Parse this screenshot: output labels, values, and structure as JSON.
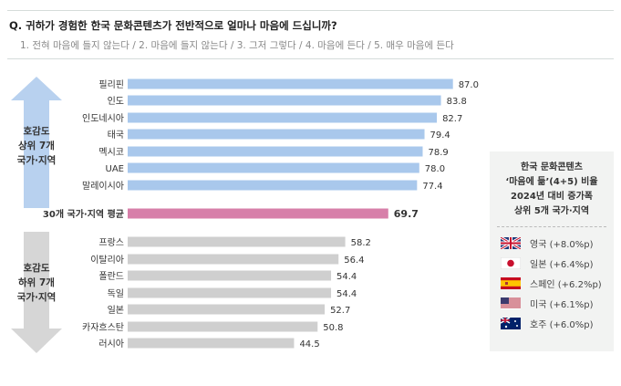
{
  "question": "Q. 귀하가 경험한 한국 문화콘텐츠가 전반적으로 얼마나 마음에 드십니까?",
  "scale": "1. 전혀 마음에 들지 않는다 / 2. 마음에 들지 않는다 / 3. 그저 그렇다 / 4. 마음에 든다 / 5. 매우 마음에 든다",
  "top_label": [
    "호감도",
    "상위 7개",
    "국가·지역"
  ],
  "bottom_label": [
    "호감도",
    "하위 7개",
    "국가·지역"
  ],
  "colors": {
    "top": "#a9c8ec",
    "average": "#d77fa9",
    "bottom": "#cfcfcf",
    "arrow_top": "#b8d1ef",
    "arrow_bottom": "#d6d6d6"
  },
  "chart_data": {
    "type": "bar",
    "orientation": "horizontal",
    "categories": [
      "필리핀",
      "인도",
      "인도네시아",
      "태국",
      "멕시코",
      "UAE",
      "말레이시아",
      "30개 국가·지역 평균",
      "프랑스",
      "이탈리아",
      "폴란드",
      "독일",
      "일본",
      "카자흐스탄",
      "러시아"
    ],
    "values": [
      87.0,
      83.8,
      82.7,
      79.4,
      78.9,
      78.0,
      77.4,
      69.7,
      58.2,
      56.4,
      54.4,
      54.4,
      52.7,
      50.8,
      44.5
    ],
    "groups": [
      "top",
      "top",
      "top",
      "top",
      "top",
      "top",
      "top",
      "average",
      "bottom",
      "bottom",
      "bottom",
      "bottom",
      "bottom",
      "bottom",
      "bottom"
    ],
    "xlim": [
      0,
      100
    ],
    "grid": false
  },
  "side_panel": {
    "title": [
      "한국 문화콘텐츠",
      "‘마음에 듦’(4+5) 비율",
      "2024년 대비 증가폭",
      "상위 5개 국가·지역"
    ],
    "items": [
      {
        "flag": "uk-flag-icon",
        "label": "영국 (+8.0%p)"
      },
      {
        "flag": "japan-flag-icon",
        "label": "일본 (+6.4%p)"
      },
      {
        "flag": "spain-flag-icon",
        "label": "스페인 (+6.2%p)"
      },
      {
        "flag": "us-flag-icon",
        "label": "미국 (+6.1%p)"
      },
      {
        "flag": "australia-flag-icon",
        "label": "호주 (+6.0%p)"
      }
    ]
  }
}
